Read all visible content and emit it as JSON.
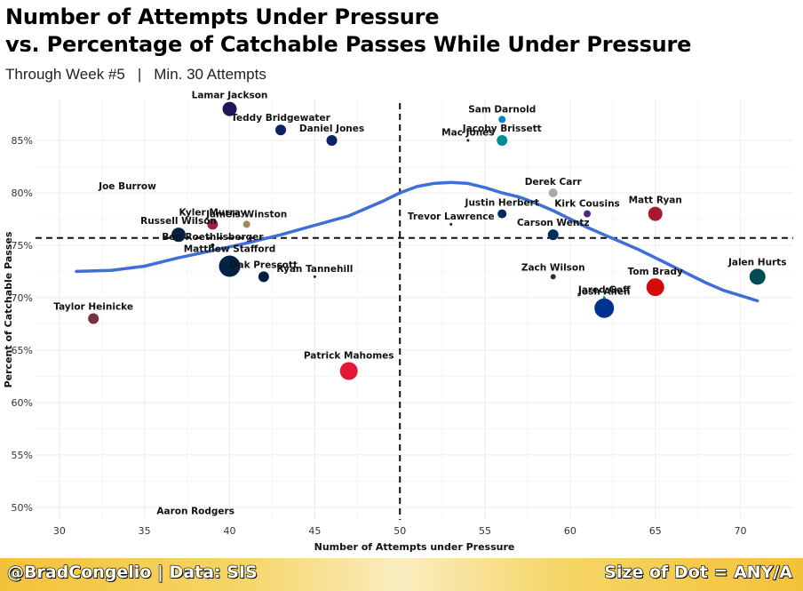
{
  "title_line1": "Number of Attempts Under Pressure",
  "title_line2": "vs. Percentage of Catchable Passes While Under Pressure",
  "subtitle_left": "Through Week #5",
  "subtitle_sep": "|",
  "subtitle_right": "Min. 30 Attempts",
  "footer_left": "@BradCongelio | Data: SIS",
  "footer_right": "Size of Dot = ANY/A",
  "chart_data": {
    "type": "scatter",
    "xlabel": "Number of Attempts under Pressure",
    "ylabel": "Percent of Catchable Passes",
    "xlim": [
      28.6,
      73.1
    ],
    "ylim": [
      48.8,
      88.9
    ],
    "x_ticks": [
      30,
      35,
      40,
      45,
      50,
      55,
      60,
      65,
      70
    ],
    "x_tick_labels": [
      "30",
      "35",
      "40",
      "45",
      "50",
      "55",
      "60",
      "65",
      "70"
    ],
    "y_ticks": [
      50,
      55,
      60,
      65,
      70,
      75,
      80,
      85
    ],
    "y_tick_labels": [
      "50%",
      "55%",
      "60%",
      "65%",
      "70%",
      "75%",
      "80%",
      "85%"
    ],
    "grid": true,
    "mean_x": 50,
    "mean_y": 75.7,
    "points": [
      {
        "name": "Lamar Jackson",
        "x": 40,
        "y": 88,
        "size": 8,
        "color": "#24135f"
      },
      {
        "name": "Teddy Bridgewater",
        "x": 43,
        "y": 86,
        "size": 6,
        "color": "#0b2265"
      },
      {
        "name": "Daniel Jones",
        "x": 46,
        "y": 85,
        "size": 6,
        "color": "#0b2265"
      },
      {
        "name": "Joe Burrow",
        "x": 34,
        "y": 80,
        "size": 0,
        "color": "#fb4f14"
      },
      {
        "name": "Kyler Murray",
        "x": 39,
        "y": 77,
        "size": 6,
        "color": "#97233f"
      },
      {
        "name": "Jameis Winston",
        "x": 41,
        "y": 77,
        "size": 4,
        "color": "#9f8958"
      },
      {
        "name": "Russell Wilson",
        "x": 37,
        "y": 76,
        "size": 8,
        "color": "#002244"
      },
      {
        "name": "Ben Roethlisberger",
        "x": 39,
        "y": 75,
        "size": 2,
        "color": "#111111"
      },
      {
        "name": "Matthew Stafford",
        "x": 40,
        "y": 73,
        "size": 12,
        "color": "#002244"
      },
      {
        "name": "Dak Prescott",
        "x": 42,
        "y": 72,
        "size": 6,
        "color": "#041e42"
      },
      {
        "name": "Ryan Tannehill",
        "x": 45,
        "y": 72,
        "size": 1.5,
        "color": "#0c2340"
      },
      {
        "name": "Taylor Heinicke",
        "x": 32,
        "y": 68,
        "size": 6,
        "color": "#773141"
      },
      {
        "name": "Patrick Mahomes",
        "x": 47,
        "y": 63,
        "size": 10,
        "color": "#e31837"
      },
      {
        "name": "Aaron Rodgers",
        "x": 38,
        "y": 49,
        "size": 0,
        "color": "#203731"
      },
      {
        "name": "Sam Darnold",
        "x": 56,
        "y": 87,
        "size": 4,
        "color": "#0085ca"
      },
      {
        "name": "Mac Jones",
        "x": 54,
        "y": 85,
        "size": 1.5,
        "color": "#002244"
      },
      {
        "name": "Jacoby Brissett",
        "x": 56,
        "y": 85,
        "size": 6,
        "color": "#008e97"
      },
      {
        "name": "Derek Carr",
        "x": 59,
        "y": 80,
        "size": 5,
        "color": "#a5acaf"
      },
      {
        "name": "Justin Herbert",
        "x": 56,
        "y": 78,
        "size": 5,
        "color": "#002a5e"
      },
      {
        "name": "Kirk Cousins",
        "x": 61,
        "y": 78,
        "size": 4,
        "color": "#4f2683"
      },
      {
        "name": "Matt Ryan",
        "x": 65,
        "y": 78,
        "size": 8,
        "color": "#a71930"
      },
      {
        "name": "Trevor Lawrence",
        "x": 53,
        "y": 77,
        "size": 1.5,
        "color": "#101820"
      },
      {
        "name": "Carson Wentz",
        "x": 59,
        "y": 76,
        "size": 6,
        "color": "#002c5f"
      },
      {
        "name": "Zach Wilson",
        "x": 59,
        "y": 72,
        "size": 3,
        "color": "#203731"
      },
      {
        "name": "Jalen Hurts",
        "x": 71,
        "y": 72,
        "size": 9,
        "color": "#004c54"
      },
      {
        "name": "Tom Brady",
        "x": 65,
        "y": 71,
        "size": 10,
        "color": "#d50a0a"
      },
      {
        "name": "Jared Goff",
        "x": 62,
        "y": 70,
        "size": 1.5,
        "color": "#0076b6"
      },
      {
        "name": "Josh Allen",
        "x": 62,
        "y": 69,
        "size": 11,
        "color": "#00338d"
      }
    ],
    "smooth_line": {
      "color": "#3e6ed8",
      "x": [
        31,
        33,
        35,
        37,
        39,
        41,
        43,
        45,
        47,
        49,
        50,
        51,
        52,
        53,
        54,
        55,
        56,
        57,
        58,
        59,
        60,
        61,
        62,
        63,
        64,
        65,
        66,
        67,
        68,
        69,
        70,
        71
      ],
      "y": [
        72.5,
        72.6,
        73.0,
        73.8,
        74.5,
        75.2,
        76.0,
        76.9,
        77.8,
        79.2,
        80.0,
        80.6,
        80.9,
        81.0,
        80.9,
        80.5,
        80.0,
        79.6,
        79.0,
        78.3,
        77.5,
        76.7,
        76.0,
        75.3,
        74.6,
        73.8,
        73.0,
        72.2,
        71.4,
        70.7,
        70.2,
        69.7
      ]
    }
  }
}
